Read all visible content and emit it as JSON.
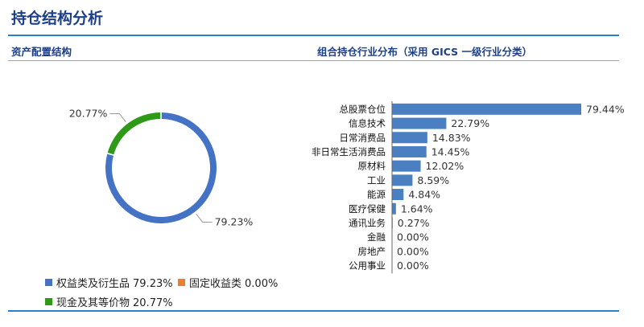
{
  "header": {
    "title": "持仓结构分析",
    "left_section": "资产配置结构",
    "right_section": "组合持仓行业分布（采用 GICS 一级行业分类）"
  },
  "chart_data": [
    {
      "type": "pie",
      "title": "资产配置结构",
      "labels": [
        "权益类及衍生品",
        "固定收益类",
        "现金及其等价物"
      ],
      "values": [
        79.23,
        0.0,
        20.77
      ],
      "value_labels": [
        "79.23%",
        "0.00%",
        "20.77%"
      ],
      "colors": [
        "#4472c4",
        "#ed7d31",
        "#2e9a18"
      ],
      "legend": "bottom-left"
    },
    {
      "type": "bar",
      "orientation": "horizontal",
      "title": "组合持仓行业分布（采用 GICS 一级行业分类）",
      "categories": [
        "总股票仓位",
        "信息技术",
        "日常消费品",
        "非日常生活消费品",
        "原材料",
        "工业",
        "能源",
        "医疗保健",
        "通讯业务",
        "金融",
        "房地产",
        "公用事业"
      ],
      "values": [
        79.44,
        22.79,
        14.83,
        14.45,
        12.02,
        8.59,
        4.84,
        1.64,
        0.27,
        0.0,
        0.0,
        0.0
      ],
      "value_labels": [
        "79.44%",
        "22.79%",
        "14.83%",
        "14.45%",
        "12.02%",
        "8.59%",
        "4.84%",
        "1.64%",
        "0.27%",
        "0.00%",
        "0.00%",
        "0.00%"
      ],
      "color": "#4a7fc1",
      "xlim": [
        0,
        79.44
      ]
    }
  ]
}
